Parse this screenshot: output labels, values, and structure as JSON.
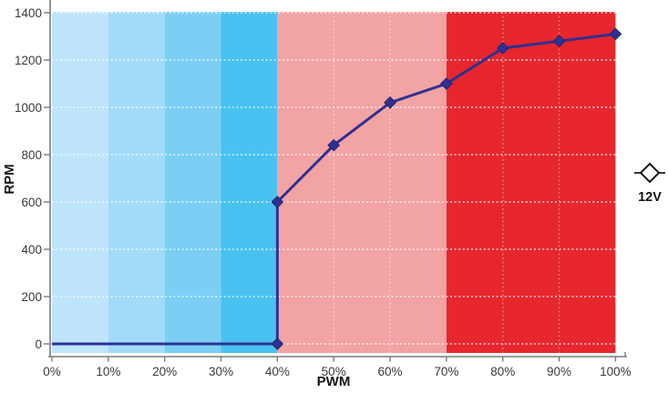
{
  "chart_data": {
    "type": "line",
    "title": "",
    "xlabel": "PWM",
    "ylabel": "RPM",
    "xlim": [
      0,
      100
    ],
    "ylim": [
      0,
      1400
    ],
    "x_tick_values": [
      0,
      10,
      20,
      30,
      40,
      50,
      60,
      70,
      80,
      90,
      100
    ],
    "x_tick_labels": [
      "0%",
      "10%",
      "20%",
      "30%",
      "40%",
      "50%",
      "60%",
      "70%",
      "80%",
      "90%",
      "100%"
    ],
    "y_tick_values": [
      0,
      200,
      400,
      600,
      800,
      1000,
      1200,
      1400
    ],
    "y_tick_labels": [
      "0",
      "200",
      "400",
      "600",
      "800",
      "1000",
      "1200",
      "1400"
    ],
    "grid": {
      "horizontal_style": "white dotted at every 200 RPM",
      "vertical_minor_at_pct": [
        50,
        60,
        80,
        90
      ]
    },
    "legend": {
      "position": "right-middle",
      "entries": [
        {
          "label": "12V",
          "marker": "diamond-outline-with-line",
          "color": "#1a1a1a"
        }
      ]
    },
    "series": [
      {
        "name": "12V",
        "color": "#2e3192",
        "marker": "diamond",
        "marker_edge_color": "#23256e",
        "line_points": [
          [
            0,
            0
          ],
          [
            40,
            0
          ],
          [
            40,
            600
          ],
          [
            50,
            840
          ],
          [
            60,
            1020
          ],
          [
            70,
            1100
          ],
          [
            80,
            1250
          ],
          [
            90,
            1280
          ],
          [
            100,
            1310
          ]
        ],
        "marker_points": [
          [
            40,
            0
          ],
          [
            40,
            600
          ],
          [
            50,
            840
          ],
          [
            60,
            1020
          ],
          [
            70,
            1100
          ],
          [
            80,
            1250
          ],
          [
            90,
            1280
          ],
          [
            100,
            1310
          ]
        ]
      }
    ],
    "background_zones": [
      {
        "from_pct": 0,
        "to_pct": 10,
        "color": "#bee5fb"
      },
      {
        "from_pct": 10,
        "to_pct": 20,
        "color": "#a2dbf9"
      },
      {
        "from_pct": 20,
        "to_pct": 30,
        "color": "#7bcff5"
      },
      {
        "from_pct": 30,
        "to_pct": 40,
        "color": "#4ac2f1"
      },
      {
        "from_pct": 40,
        "to_pct": 70,
        "color": "#f2a3a4"
      },
      {
        "from_pct": 70,
        "to_pct": 100,
        "color": "#e7262e"
      }
    ],
    "axis_color": "#7a7a7a",
    "tick_label_color": "#3a3a3a",
    "gridline_color": "#ffffff"
  }
}
